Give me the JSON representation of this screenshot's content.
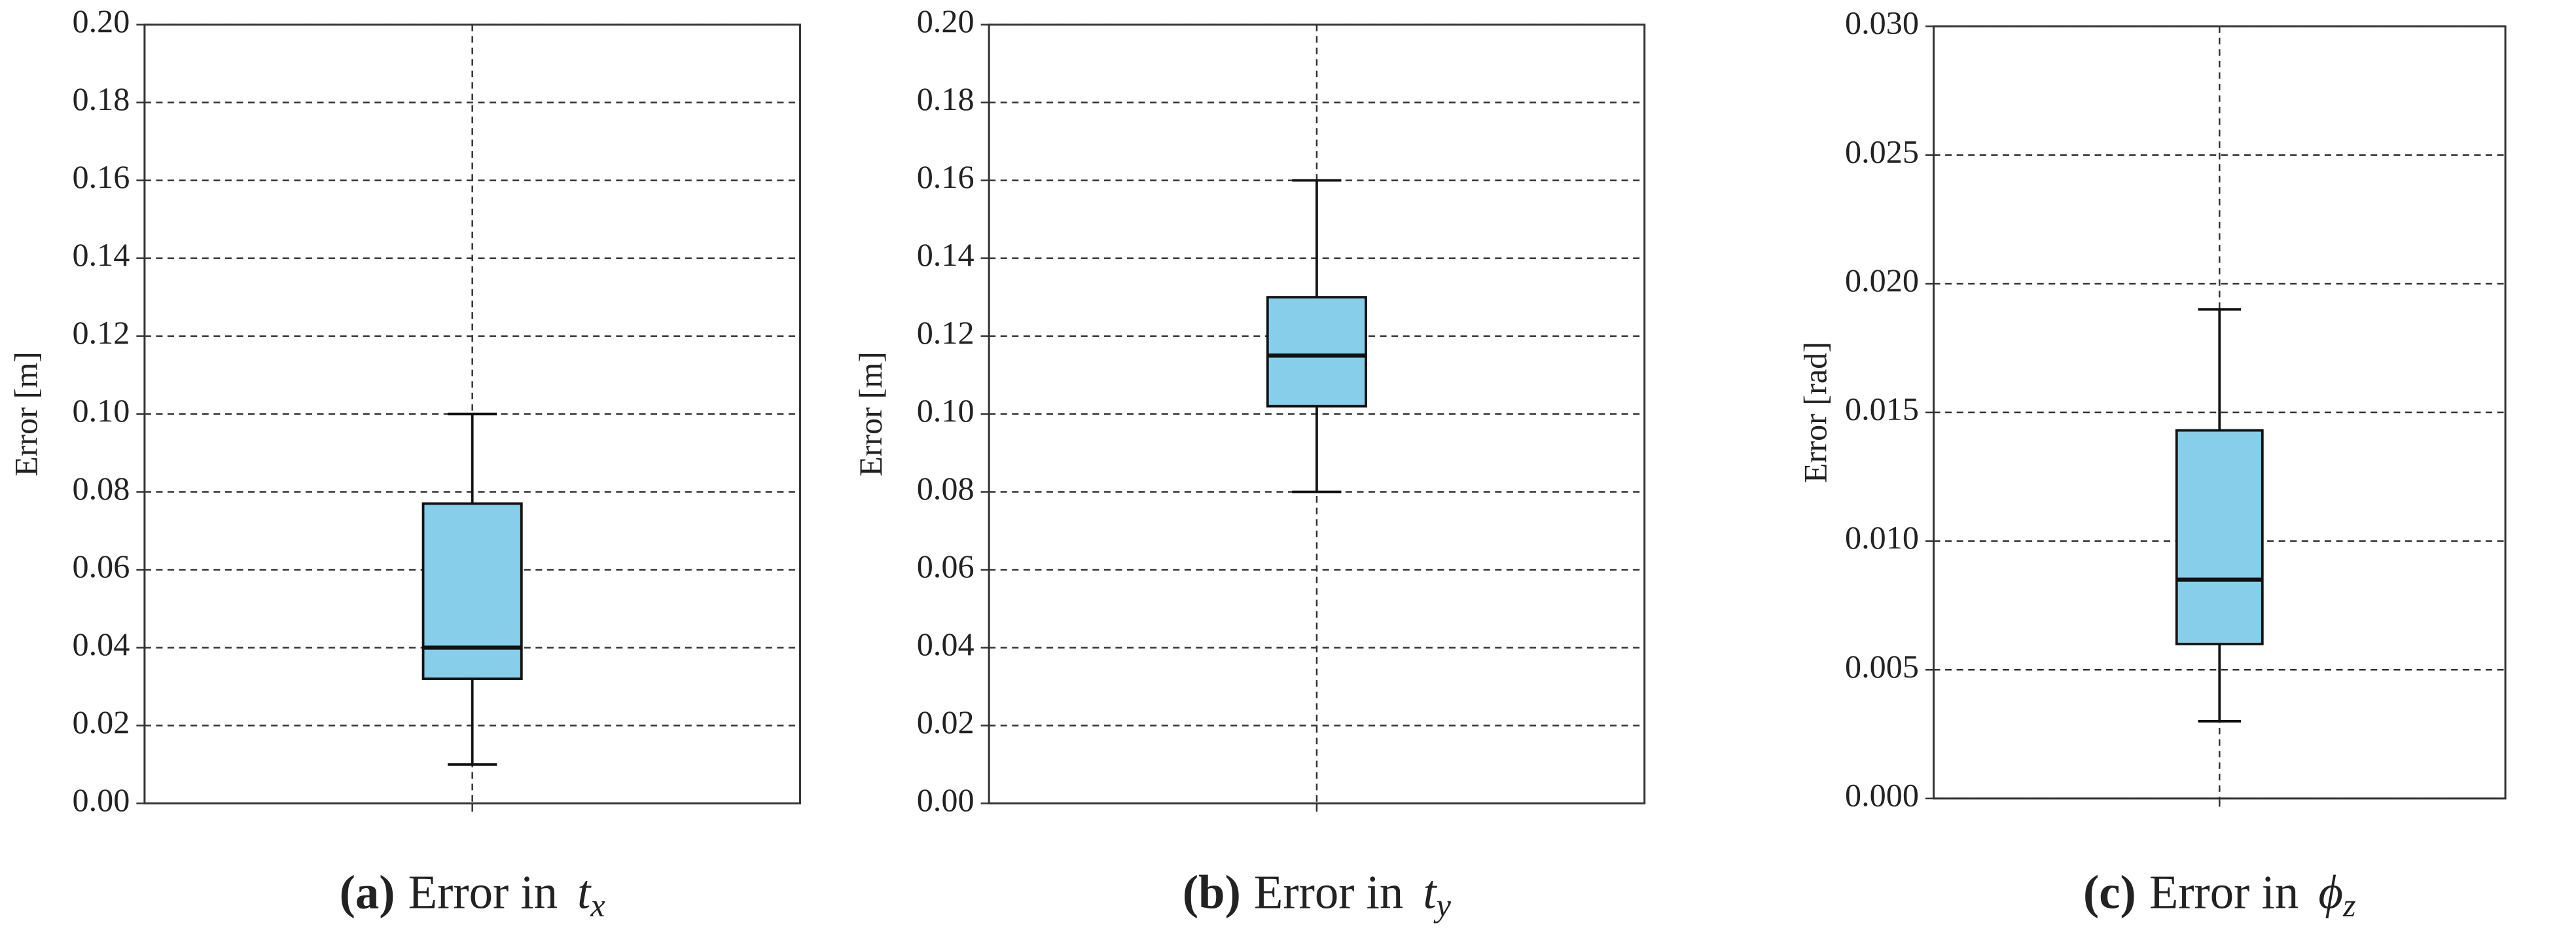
{
  "chart_data": [
    {
      "type": "box",
      "caption_label": "(a)",
      "caption": "Error in",
      "caption_symbol": "t",
      "caption_subscript": "x",
      "ylabel": "Error [m]",
      "color": "#87ceeb",
      "grid": true,
      "whisker_low": 0.01,
      "q1": 0.032,
      "median": 0.04,
      "q3": 0.077,
      "whisker_high": 0.1,
      "ylim": [
        0,
        0.2
      ],
      "yticks": [
        {
          "value": 0,
          "label": "0.00"
        },
        {
          "value": 0.02,
          "label": "0.02"
        },
        {
          "value": 0.04,
          "label": "0.04"
        },
        {
          "value": 0.06,
          "label": "0.06"
        },
        {
          "value": 0.08,
          "label": "0.08"
        },
        {
          "value": 0.1,
          "label": "0.10"
        },
        {
          "value": 0.12,
          "label": "0.12"
        },
        {
          "value": 0.14,
          "label": "0.14"
        },
        {
          "value": 0.16,
          "label": "0.16"
        },
        {
          "value": 0.18,
          "label": "0.18"
        },
        {
          "value": 0.2,
          "label": "0.20"
        }
      ]
    },
    {
      "type": "box",
      "caption_label": "(b)",
      "caption": "Error in",
      "caption_symbol": "t",
      "caption_subscript": "y",
      "ylabel": "Error [m]",
      "color": "#87ceeb",
      "grid": true,
      "whisker_low": 0.08,
      "q1": 0.102,
      "median": 0.115,
      "q3": 0.13,
      "whisker_high": 0.16,
      "ylim": [
        0,
        0.2
      ],
      "yticks": [
        {
          "value": 0,
          "label": "0.00"
        },
        {
          "value": 0.02,
          "label": "0.02"
        },
        {
          "value": 0.04,
          "label": "0.04"
        },
        {
          "value": 0.06,
          "label": "0.06"
        },
        {
          "value": 0.08,
          "label": "0.08"
        },
        {
          "value": 0.1,
          "label": "0.10"
        },
        {
          "value": 0.12,
          "label": "0.12"
        },
        {
          "value": 0.14,
          "label": "0.14"
        },
        {
          "value": 0.16,
          "label": "0.16"
        },
        {
          "value": 0.18,
          "label": "0.18"
        },
        {
          "value": 0.2,
          "label": "0.20"
        }
      ]
    },
    {
      "type": "box",
      "caption_label": "(c)",
      "caption": "Error in",
      "caption_symbol": "ϕ",
      "caption_subscript": "z",
      "ylabel": "Error [rad]",
      "color": "#87ceeb",
      "grid": true,
      "whisker_low": 0.003,
      "q1": 0.006,
      "median": 0.0085,
      "q3": 0.0143,
      "whisker_high": 0.019,
      "ylim": [
        0,
        0.03
      ],
      "yticks": [
        {
          "value": 0,
          "label": "0.000"
        },
        {
          "value": 0.005,
          "label": "0.005"
        },
        {
          "value": 0.01,
          "label": "0.010"
        },
        {
          "value": 0.015,
          "label": "0.015"
        },
        {
          "value": 0.02,
          "label": "0.020"
        },
        {
          "value": 0.025,
          "label": "0.025"
        },
        {
          "value": 0.03,
          "label": "0.030"
        }
      ]
    }
  ]
}
